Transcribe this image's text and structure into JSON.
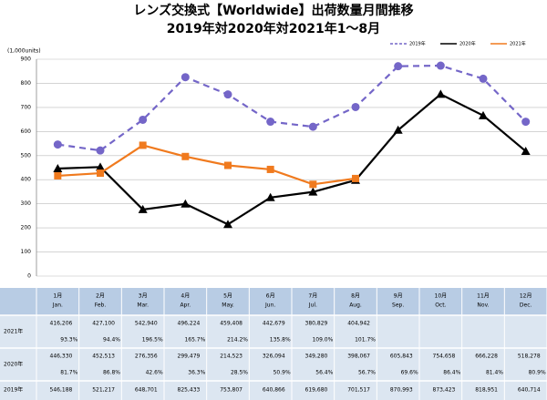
{
  "chart_data": {
    "type": "line",
    "title": "レンズ交換式【Worldwide】出荷数量月間推移",
    "subtitle": "2019年対2020年対2021年1～8月",
    "y_unit": "(1,000units)",
    "categories": [
      "1月",
      "2月",
      "3月",
      "4月",
      "5月",
      "6月",
      "7月",
      "8月",
      "9月",
      "10月",
      "11月",
      "12月"
    ],
    "categories_en": [
      "Jan.",
      "Feb.",
      "Mar.",
      "Apr.",
      "May.",
      "Jun.",
      "Jul.",
      "Aug.",
      "Sep.",
      "Oct.",
      "Nov.",
      "Dec."
    ],
    "ylim": [
      0,
      900
    ],
    "yticks": [
      0,
      100,
      200,
      300,
      400,
      500,
      600,
      700,
      800,
      900
    ],
    "grid": true,
    "legend": "top-right",
    "series": [
      {
        "name": "2019年",
        "color": "#7466c8",
        "dash": true,
        "marker": "circle",
        "values": [
          546.188,
          521.217,
          648.701,
          825.433,
          753.807,
          640.866,
          619.68,
          701.517,
          870.993,
          873.423,
          818.951,
          640.714
        ],
        "value_labels": [
          "546,188",
          "521,217",
          "648,701",
          "825,433",
          "753,807",
          "640,866",
          "619,680",
          "701,517",
          "870,993",
          "873,423",
          "818,951",
          "640,714"
        ]
      },
      {
        "name": "2020年",
        "color": "#000000",
        "dash": false,
        "marker": "triangle",
        "values": [
          446.33,
          452.513,
          276.356,
          299.479,
          214.523,
          326.094,
          349.28,
          398.067,
          605.843,
          754.658,
          666.228,
          518.278
        ],
        "value_labels": [
          "446,330",
          "452,513",
          "276,356",
          "299,479",
          "214,523",
          "326,094",
          "349,280",
          "398,067",
          "605,843",
          "754,658",
          "666,228",
          "518,278"
        ],
        "ratios": [
          "81.7%",
          "86.8%",
          "42.6%",
          "36.3%",
          "28.5%",
          "50.9%",
          "56.4%",
          "56.7%",
          "69.6%",
          "86.4%",
          "81.4%",
          "80.9%"
        ]
      },
      {
        "name": "2021年",
        "color": "#f07a1e",
        "dash": false,
        "marker": "square",
        "values": [
          416.206,
          427.1,
          542.94,
          496.224,
          459.408,
          442.679,
          380.829,
          404.942,
          null,
          null,
          null,
          null
        ],
        "value_labels": [
          "416,206",
          "427,100",
          "542,940",
          "496,224",
          "459,408",
          "442,679",
          "380,829",
          "404,942",
          null,
          null,
          null,
          null
        ],
        "ratios": [
          "93.3%",
          "94.4%",
          "196.5%",
          "165.7%",
          "214.2%",
          "135.8%",
          "109.0%",
          "101.7%",
          null,
          null,
          null,
          null
        ]
      }
    ]
  }
}
